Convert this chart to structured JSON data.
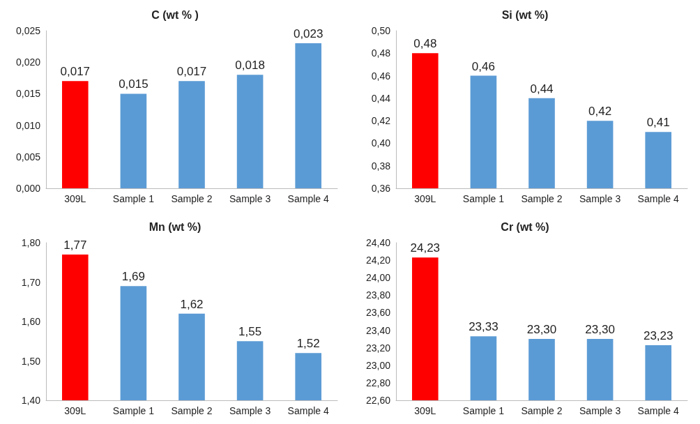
{
  "chart_data": [
    {
      "type": "bar",
      "title": "C (wt % )",
      "categories": [
        "309L",
        "Sample 1",
        "Sample 2",
        "Sample 3",
        "Sample 4"
      ],
      "values": [
        0.017,
        0.015,
        0.017,
        0.018,
        0.023
      ],
      "colors": [
        "#ff0000",
        "#5b9bd5",
        "#5b9bd5",
        "#5b9bd5",
        "#5b9bd5"
      ],
      "value_labels": [
        "0,017",
        "0,015",
        "0,017",
        "0,018",
        "0,023"
      ],
      "ylim": [
        0,
        0.025
      ],
      "yticks": [
        {
          "value": 0,
          "label": "0,000"
        },
        {
          "value": 0.005,
          "label": "0,005"
        },
        {
          "value": 0.01,
          "label": "0,010"
        },
        {
          "value": 0.015,
          "label": "0,015"
        },
        {
          "value": 0.02,
          "label": "0,020"
        },
        {
          "value": 0.025,
          "label": "0,025"
        }
      ],
      "grid": false
    },
    {
      "type": "bar",
      "title": "Si (wt %)",
      "categories": [
        "309L",
        "Sample 1",
        "Sample 2",
        "Sample 3",
        "Sample 4"
      ],
      "values": [
        0.48,
        0.46,
        0.44,
        0.42,
        0.41
      ],
      "colors": [
        "#ff0000",
        "#5b9bd5",
        "#5b9bd5",
        "#5b9bd5",
        "#5b9bd5"
      ],
      "value_labels": [
        "0,48",
        "0,46",
        "0,44",
        "0,42",
        "0,41"
      ],
      "ylim": [
        0.36,
        0.5
      ],
      "yticks": [
        {
          "value": 0.36,
          "label": "0,36"
        },
        {
          "value": 0.38,
          "label": "0,38"
        },
        {
          "value": 0.4,
          "label": "0,40"
        },
        {
          "value": 0.42,
          "label": "0,42"
        },
        {
          "value": 0.44,
          "label": "0,44"
        },
        {
          "value": 0.46,
          "label": "0,46"
        },
        {
          "value": 0.48,
          "label": "0,48"
        },
        {
          "value": 0.5,
          "label": "0,50"
        }
      ],
      "grid": false
    },
    {
      "type": "bar",
      "title": "Mn (wt %)",
      "categories": [
        "309L",
        "Sample 1",
        "Sample 2",
        "Sample 3",
        "Sample 4"
      ],
      "values": [
        1.77,
        1.69,
        1.62,
        1.55,
        1.52
      ],
      "colors": [
        "#ff0000",
        "#5b9bd5",
        "#5b9bd5",
        "#5b9bd5",
        "#5b9bd5"
      ],
      "value_labels": [
        "1,77",
        "1,69",
        "1,62",
        "1,55",
        "1,52"
      ],
      "ylim": [
        1.4,
        1.8
      ],
      "yticks": [
        {
          "value": 1.4,
          "label": "1,40"
        },
        {
          "value": 1.5,
          "label": "1,50"
        },
        {
          "value": 1.6,
          "label": "1,60"
        },
        {
          "value": 1.7,
          "label": "1,70"
        },
        {
          "value": 1.8,
          "label": "1,80"
        }
      ],
      "grid": false
    },
    {
      "type": "bar",
      "title": "Cr (wt %)",
      "categories": [
        "309L",
        "Sample 1",
        "Sample 2",
        "Sample 3",
        "Sample 4"
      ],
      "values": [
        24.23,
        23.33,
        23.3,
        23.3,
        23.23
      ],
      "colors": [
        "#ff0000",
        "#5b9bd5",
        "#5b9bd5",
        "#5b9bd5",
        "#5b9bd5"
      ],
      "value_labels": [
        "24,23",
        "23,33",
        "23,30",
        "23,30",
        "23,23"
      ],
      "ylim": [
        22.6,
        24.4
      ],
      "yticks": [
        {
          "value": 22.6,
          "label": "22,60"
        },
        {
          "value": 22.8,
          "label": "22,80"
        },
        {
          "value": 23,
          "label": "23,00"
        },
        {
          "value": 23.2,
          "label": "23,20"
        },
        {
          "value": 23.4,
          "label": "23,40"
        },
        {
          "value": 23.6,
          "label": "23,60"
        },
        {
          "value": 23.8,
          "label": "23,80"
        },
        {
          "value": 24,
          "label": "24,00"
        },
        {
          "value": 24.2,
          "label": "24,20"
        },
        {
          "value": 24.4,
          "label": "24,40"
        }
      ],
      "grid": false
    }
  ]
}
